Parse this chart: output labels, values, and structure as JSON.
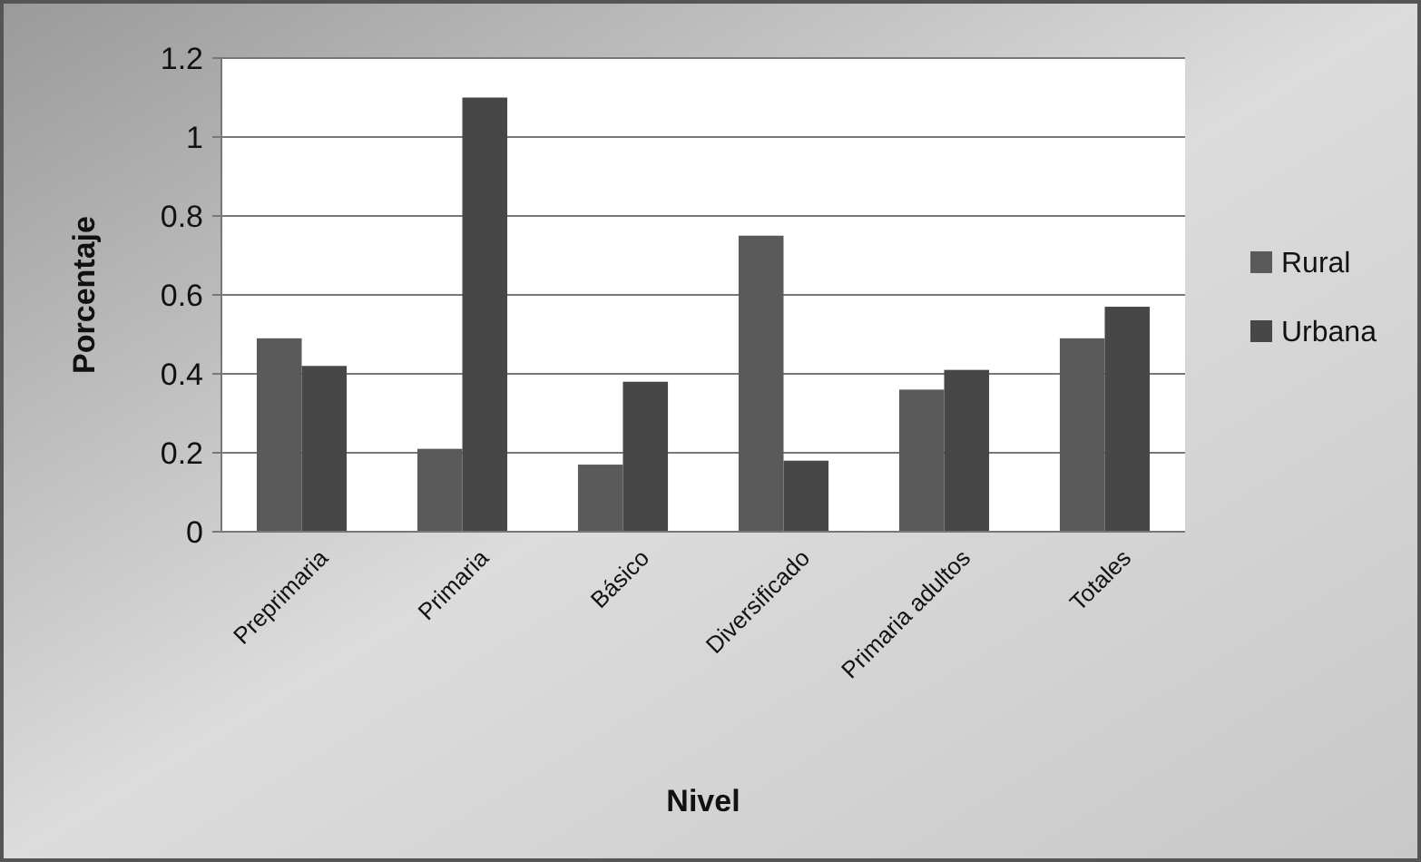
{
  "chart_data": {
    "type": "bar",
    "xlabel": "Nivel",
    "ylabel": "Porcentaje",
    "categories": [
      "Preprimaria",
      "Primaria",
      "Básico",
      "Diversificado",
      "Primaria adultos",
      "Totales"
    ],
    "series": [
      {
        "name": "Rural",
        "color": "#5a5a5a",
        "values": [
          0.49,
          0.21,
          0.17,
          0.75,
          0.36,
          0.49
        ]
      },
      {
        "name": "Urbana",
        "color": "#474747",
        "values": [
          0.42,
          1.1,
          0.38,
          0.18,
          0.41,
          0.57
        ]
      }
    ],
    "ylim": [
      0,
      1.2
    ],
    "yticks": [
      0,
      0.2,
      0.4,
      0.6,
      0.8,
      1,
      1.2
    ],
    "grid": "y",
    "legend": "right"
  }
}
